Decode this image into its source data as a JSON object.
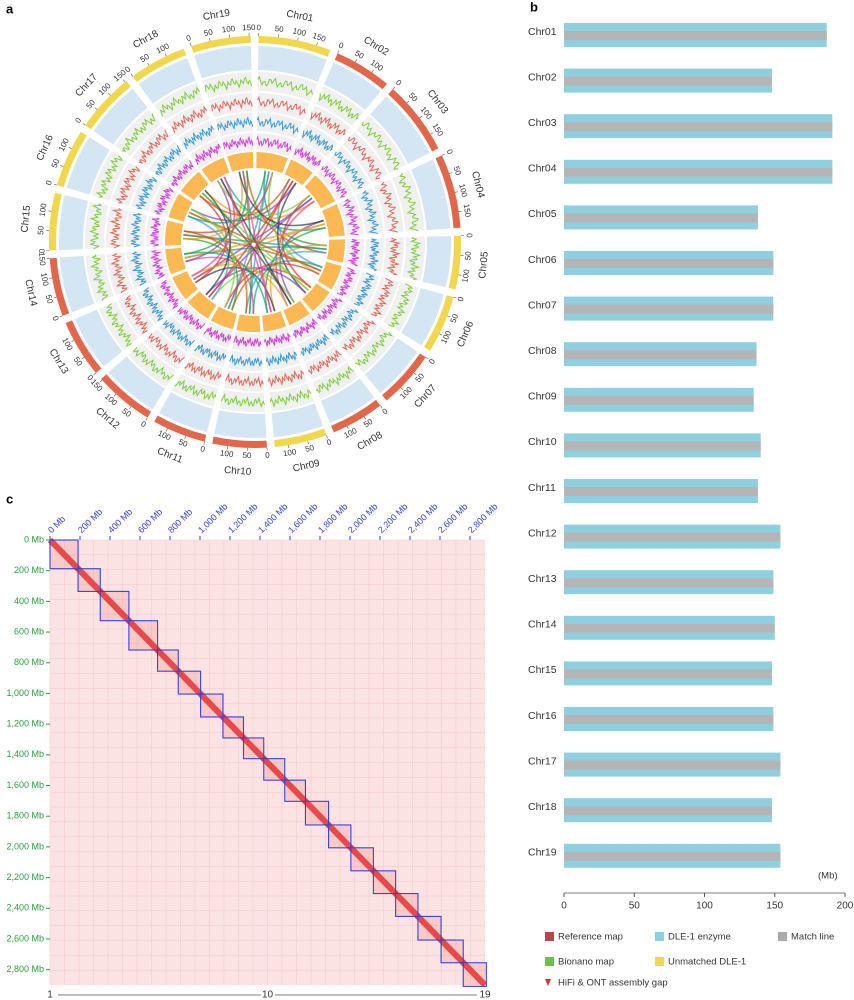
{
  "chart_data": [
    {
      "type": "circos",
      "panel_label": "a",
      "categories": [
        "Chr01",
        "Chr02",
        "Chr03",
        "Chr04",
        "Chr05",
        "Chr06",
        "Chr07",
        "Chr08",
        "Chr09",
        "Chr10",
        "Chr11",
        "Chr12",
        "Chr13",
        "Chr14",
        "Chr15",
        "Chr16",
        "Chr17",
        "Chr18",
        "Chr19"
      ],
      "values": [
        187,
        148,
        191,
        191,
        138,
        149,
        149,
        137,
        135,
        140,
        138,
        154,
        149,
        150,
        148,
        149,
        154,
        148,
        154
      ],
      "colors": [
        "#f2d64b",
        "#e2664a",
        "#e2664a",
        "#e2664a",
        "#f2d64b",
        "#f2d64b",
        "#e2664a",
        "#e2664a",
        "#f2d64b",
        "#e2664a",
        "#e2664a",
        "#e2664a",
        "#e2664a",
        "#e2664a",
        "#f2d64b",
        "#f2d64b",
        "#f2d64b",
        "#f2d64b",
        "#f2d64b"
      ],
      "ticks": [
        0,
        50,
        100,
        150
      ]
    },
    {
      "type": "chromosome-map",
      "panel_label": "b",
      "categories": [
        "Chr01",
        "Chr02",
        "Chr03",
        "Chr04",
        "Chr05",
        "Chr06",
        "Chr07",
        "Chr08",
        "Chr09",
        "Chr10",
        "Chr11",
        "Chr12",
        "Chr13",
        "Chr14",
        "Chr15",
        "Chr16",
        "Chr17",
        "Chr18",
        "Chr19"
      ],
      "values": [
        187,
        148,
        191,
        191,
        138,
        149,
        149,
        137,
        135,
        140,
        138,
        154,
        149,
        150,
        148,
        149,
        154,
        148,
        154
      ],
      "color": "#8ecfe0",
      "match_color": "#b5b5b5",
      "xlim": [
        0,
        200
      ],
      "xticks": [
        0,
        50,
        100,
        150,
        200
      ],
      "x_label": "(Mb)",
      "legend": [
        {
          "name": "Reference map",
          "color": "#b5484f"
        },
        {
          "name": "DLE-1 enzyme",
          "color": "#8ecfe0"
        },
        {
          "name": "Match line",
          "color": "#aaaaaa"
        },
        {
          "name": "Bionano map",
          "color": "#6cbf4a"
        },
        {
          "name": "Unmatched DLE-1",
          "color": "#f2d64b"
        },
        {
          "name": "HiFi & ONT assembly gap",
          "color": "#e0302f"
        }
      ]
    },
    {
      "type": "hic",
      "panel_label": "c",
      "values": [
        187,
        148,
        191,
        191,
        138,
        149,
        149,
        137,
        135,
        140,
        138,
        154,
        149,
        150,
        148,
        149,
        154,
        148,
        154
      ],
      "color": "#3344dd",
      "xlim": [
        0,
        2900
      ],
      "ylim": [
        0,
        2900
      ],
      "xticks": [
        {
          "value": 0,
          "label": "0 Mb"
        },
        {
          "value": 200,
          "label": "200 Mb"
        },
        {
          "value": 400,
          "label": "400 Mb"
        },
        {
          "value": 600,
          "label": "600 Mb"
        },
        {
          "value": 800,
          "label": "800 Mb"
        },
        {
          "value": 1000,
          "label": "1,000 Mb"
        },
        {
          "value": 1200,
          "label": "1,200 Mb"
        },
        {
          "value": 1400,
          "label": "1,400 Mb"
        },
        {
          "value": 1600,
          "label": "1,600 Mb"
        },
        {
          "value": 1800,
          "label": "1,800 Mb"
        },
        {
          "value": 2000,
          "label": "2,000 Mb"
        },
        {
          "value": 2200,
          "label": "2,200 Mb"
        },
        {
          "value": 2400,
          "label": "2,400 Mb"
        },
        {
          "value": 2600,
          "label": "2,600 Mb"
        },
        {
          "value": 2800,
          "label": "2,800 Mb"
        }
      ],
      "yticks": [
        {
          "value": 0,
          "label": "0 Mb"
        },
        {
          "value": 200,
          "label": "200 Mb"
        },
        {
          "value": 400,
          "label": "400 Mb"
        },
        {
          "value": 600,
          "label": "600 Mb"
        },
        {
          "value": 800,
          "label": "800 Mb"
        },
        {
          "value": 1000,
          "label": "1,000 Mb"
        },
        {
          "value": 1200,
          "label": "1,200 Mb"
        },
        {
          "value": 1400,
          "label": "1,400 Mb"
        },
        {
          "value": 1600,
          "label": "1,600 Mb"
        },
        {
          "value": 1800,
          "label": "1,800 Mb"
        },
        {
          "value": 2000,
          "label": "2,000 Mb"
        },
        {
          "value": 2200,
          "label": "2,200 Mb"
        },
        {
          "value": 2400,
          "label": "2,400 Mb"
        },
        {
          "value": 2600,
          "label": "2,600 Mb"
        },
        {
          "value": 2800,
          "label": "2,800 Mb"
        }
      ],
      "index_ticks": [
        1,
        10,
        19
      ]
    }
  ]
}
